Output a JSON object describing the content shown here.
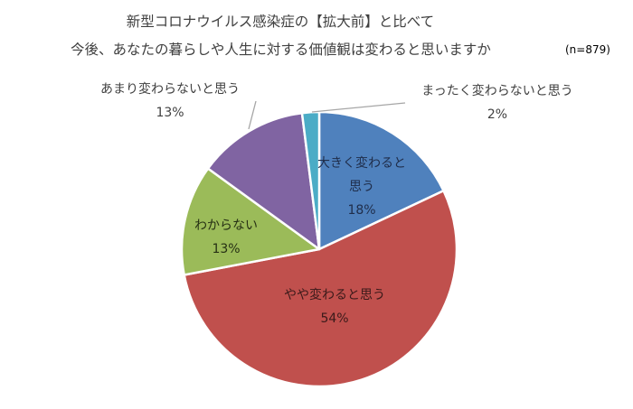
{
  "chart_data": {
    "type": "pie",
    "title": "新型コロナウイルス感染症の【拡大前】と比べて",
    "subtitle": "今後、あなたの暮らしや人生に対する価値観は変わると思いますか",
    "sample_size": "(n=879)",
    "start_angle": "12 o'clock, clockwise",
    "legend": "none (data labels on/near slices)",
    "categories": [
      "大きく変わると思う",
      "やや変わると思う",
      "わからない",
      "あまり変わらないと思う",
      "まったく変わらないと思う"
    ],
    "values": [
      18,
      54,
      13,
      13,
      2
    ],
    "unit": "%",
    "colors": [
      "#4F81BD",
      "#C0504D",
      "#9BBB59",
      "#8064A2",
      "#4BACC6"
    ]
  },
  "title": {
    "line1": "新型コロナウイルス感染症の【拡大前】と比べて",
    "line2": "今後、あなたの暮らしや人生に対する価値観は変わると思いますか",
    "n": "(n=879)"
  },
  "labels": {
    "big": {
      "line1": "大きく変わると",
      "line1b": "思う",
      "pct": "18%"
    },
    "some": {
      "text": "やや変わると思う",
      "pct": "54%"
    },
    "unknown": {
      "text": "わからない",
      "pct": "13%"
    },
    "little": {
      "text": "あまり変わらないと思う",
      "pct": "13%"
    },
    "none": {
      "text": "まったく変わらないと思う",
      "pct": "2%"
    }
  }
}
